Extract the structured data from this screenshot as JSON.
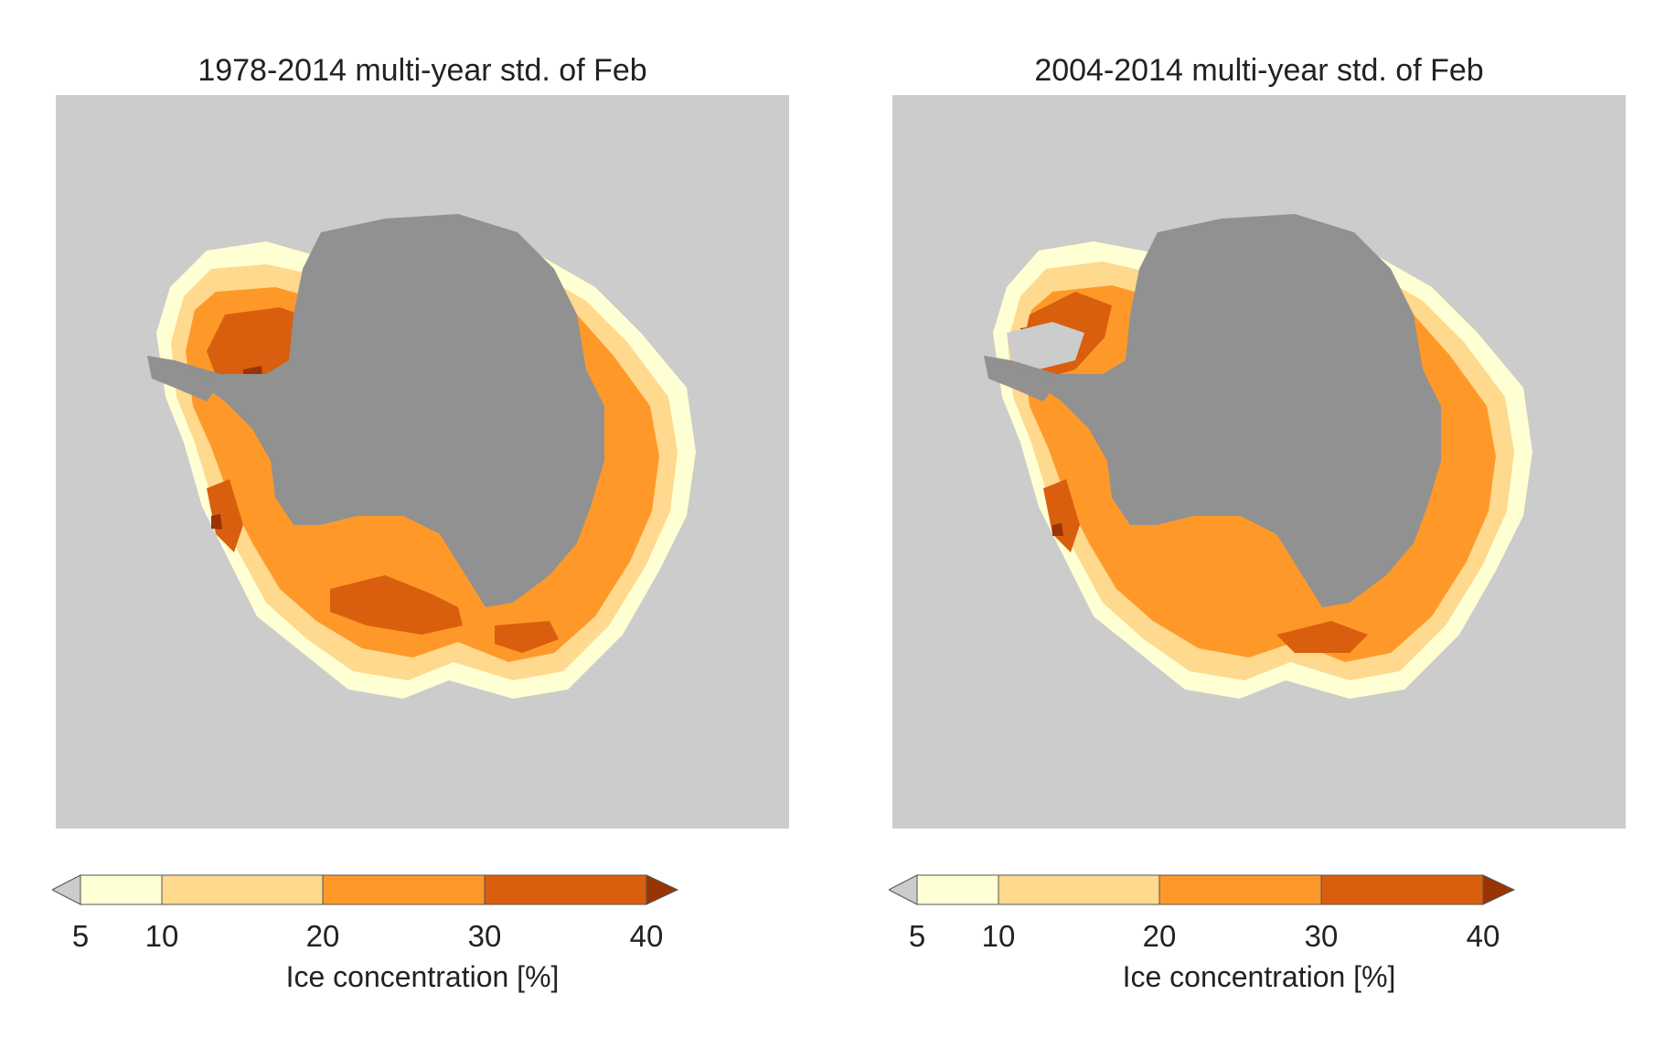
{
  "panels": [
    {
      "title": "1978-2014 multi-year std. of Feb",
      "colorbar": {
        "ticks": [
          "5",
          "10",
          "20",
          "30",
          "40"
        ],
        "label": "Ice concentration [%]"
      }
    },
    {
      "title": "2004-2014 multi-year std. of Feb",
      "colorbar": {
        "ticks": [
          "5",
          "10",
          "20",
          "30",
          "40"
        ],
        "label": "Ice concentration [%]"
      }
    }
  ],
  "legend_colors": {
    "below": "#cccccc",
    "5-10": "#ffffd4",
    "10-20": "#fed98e",
    "20-30": "#fe9929",
    "30-40": "#d95f0e",
    "above": "#993404"
  },
  "map_colors": {
    "ocean": "#cccccc",
    "land": "#919191"
  }
}
